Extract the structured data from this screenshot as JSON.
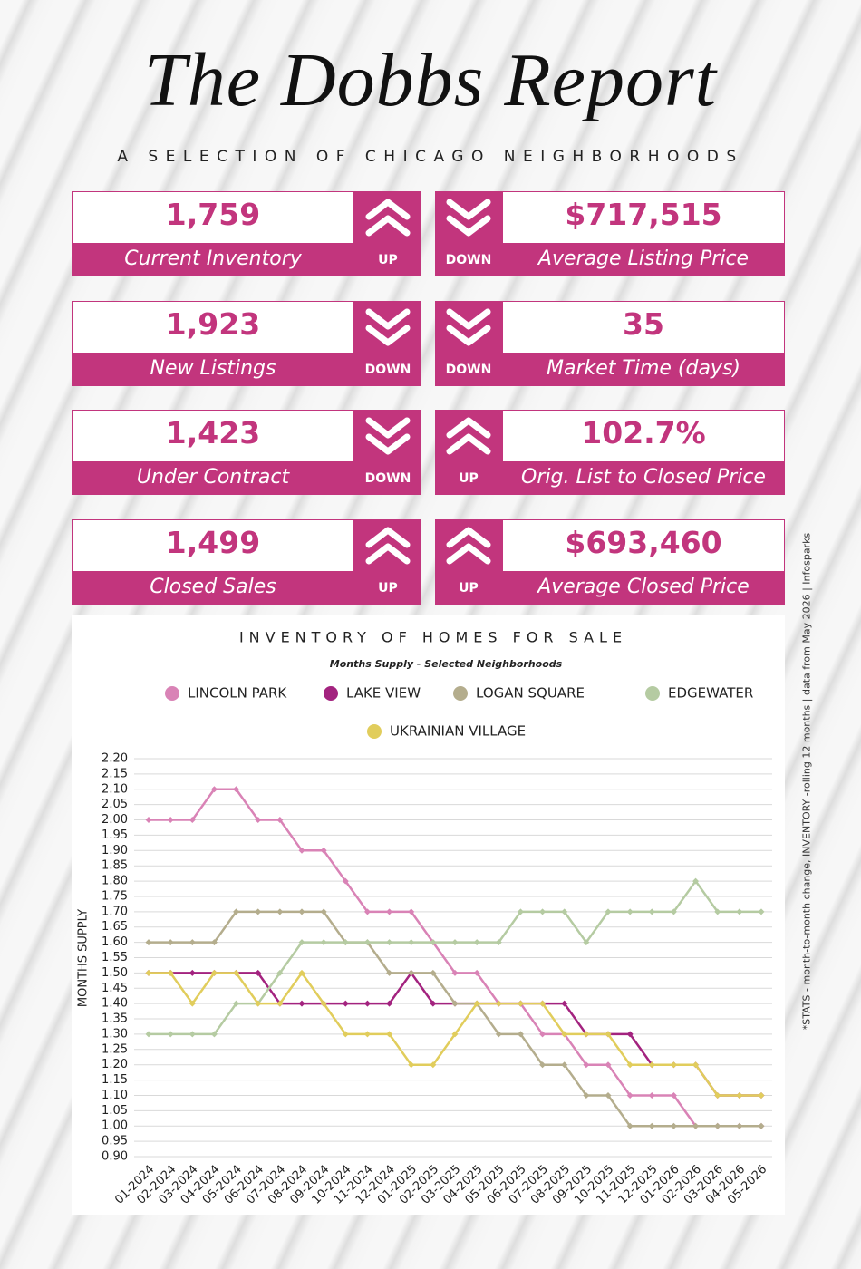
{
  "header": {
    "title": "The Dobbs Report",
    "subtitle": "A SELECTION OF CHICAGO NEIGHBORHOODS"
  },
  "stats": [
    {
      "value": "1,759",
      "label": "Current Inventory",
      "direction": "UP",
      "arrow": "up"
    },
    {
      "value": "$717,515",
      "label": "Average Listing Price",
      "direction": "DOWN",
      "arrow": "down"
    },
    {
      "value": "1,923",
      "label": "New Listings",
      "direction": "DOWN",
      "arrow": "down"
    },
    {
      "value": "35",
      "label": "Market Time (days)",
      "direction": "DOWN",
      "arrow": "down"
    },
    {
      "value": "1,423",
      "label": "Under Contract",
      "direction": "DOWN",
      "arrow": "down"
    },
    {
      "value": "102.7%",
      "label": "Orig. List to Closed Price",
      "direction": "UP",
      "arrow": "up"
    },
    {
      "value": "1,499",
      "label": "Closed Sales",
      "direction": "UP",
      "arrow": "up"
    },
    {
      "value": "$693,460",
      "label": "Average Closed Price",
      "direction": "UP",
      "arrow": "up"
    }
  ],
  "side_note": "*STATS - month-to-month change, INVENTORY -rolling 12 months | data from May 2026 | Infosparks",
  "chart_data": {
    "type": "line",
    "title": "INVENTORY OF HOMES FOR SALE",
    "subtitle": "Months Supply - Selected Neighborhoods",
    "y_label": "MONTHS SUPPLY",
    "categories": [
      "01-2024",
      "02-2024",
      "03-2024",
      "04-2024",
      "05-2024",
      "06-2024",
      "07-2024",
      "08-2024",
      "09-2024",
      "10-2024",
      "11-2024",
      "12-2024",
      "01-2025",
      "02-2025",
      "03-2025",
      "04-2025",
      "05-2025",
      "06-2025",
      "07-2025",
      "08-2025",
      "09-2025",
      "10-2025",
      "11-2025",
      "12-2025",
      "01-2026",
      "02-2026",
      "03-2026",
      "04-2026",
      "05-2026"
    ],
    "series": [
      {
        "name": "LINCOLN PARK",
        "color": "#d983b6",
        "values": [
          2.0,
          2.0,
          2.0,
          2.1,
          2.1,
          2.0,
          2.0,
          1.9,
          1.9,
          1.8,
          1.7,
          1.7,
          1.7,
          1.6,
          1.5,
          1.5,
          1.4,
          1.4,
          1.3,
          1.3,
          1.2,
          1.2,
          1.1,
          1.1,
          1.1,
          1.0,
          1.0,
          1.0,
          1.0
        ]
      },
      {
        "name": "LAKE VIEW",
        "color": "#a3237f",
        "values": [
          1.5,
          1.5,
          1.5,
          1.5,
          1.5,
          1.5,
          1.4,
          1.4,
          1.4,
          1.4,
          1.4,
          1.4,
          1.5,
          1.4,
          1.4,
          1.4,
          1.4,
          1.4,
          1.4,
          1.4,
          1.3,
          1.3,
          1.3,
          1.2,
          1.2,
          1.2,
          1.1,
          1.1,
          1.1
        ]
      },
      {
        "name": "LOGAN SQUARE",
        "color": "#b4ad8d",
        "values": [
          1.6,
          1.6,
          1.6,
          1.6,
          1.7,
          1.7,
          1.7,
          1.7,
          1.7,
          1.6,
          1.6,
          1.5,
          1.5,
          1.5,
          1.4,
          1.4,
          1.3,
          1.3,
          1.2,
          1.2,
          1.1,
          1.1,
          1.0,
          1.0,
          1.0,
          1.0,
          1.0,
          1.0,
          1.0
        ]
      },
      {
        "name": "EDGEWATER",
        "color": "#b5cba2",
        "values": [
          1.3,
          1.3,
          1.3,
          1.3,
          1.4,
          1.4,
          1.5,
          1.6,
          1.6,
          1.6,
          1.6,
          1.6,
          1.6,
          1.6,
          1.6,
          1.6,
          1.6,
          1.7,
          1.7,
          1.7,
          1.6,
          1.7,
          1.7,
          1.7,
          1.7,
          1.8,
          1.7,
          1.7,
          1.7
        ]
      },
      {
        "name": "UKRAINIAN VILLAGE",
        "color": "#e1cd5c",
        "values": [
          1.5,
          1.5,
          1.4,
          1.5,
          1.5,
          1.4,
          1.4,
          1.5,
          1.4,
          1.3,
          1.3,
          1.3,
          1.2,
          1.2,
          1.3,
          1.4,
          1.4,
          1.4,
          1.4,
          1.3,
          1.3,
          1.3,
          1.2,
          1.2,
          1.2,
          1.2,
          1.1,
          1.1,
          1.1
        ]
      }
    ],
    "ylim": [
      0.9,
      2.2
    ],
    "yticks": [
      {
        "value": 0.9,
        "label": "0.90"
      },
      0.95,
      {
        "value": 1.0,
        "label": "1.00"
      },
      1.05,
      {
        "value": 1.1,
        "label": "1.10"
      },
      1.15,
      {
        "value": 1.2,
        "label": "1.20"
      },
      1.25,
      {
        "value": 1.3,
        "label": "1.30"
      },
      1.35,
      {
        "value": 1.4,
        "label": "1.40"
      },
      1.45,
      {
        "value": 1.5,
        "label": "1.50"
      },
      1.55,
      {
        "value": 1.6,
        "label": "1.60"
      },
      1.65,
      {
        "value": 1.7,
        "label": "1.70"
      },
      1.75,
      {
        "value": 1.8,
        "label": "1.80"
      },
      1.85,
      {
        "value": 1.9,
        "label": "1.90"
      },
      1.95,
      {
        "value": 2.0,
        "label": "2.00"
      },
      2.05,
      {
        "value": 2.1,
        "label": "2.10"
      },
      2.15,
      {
        "value": 2.2,
        "label": "2.20"
      }
    ],
    "grid": true
  }
}
